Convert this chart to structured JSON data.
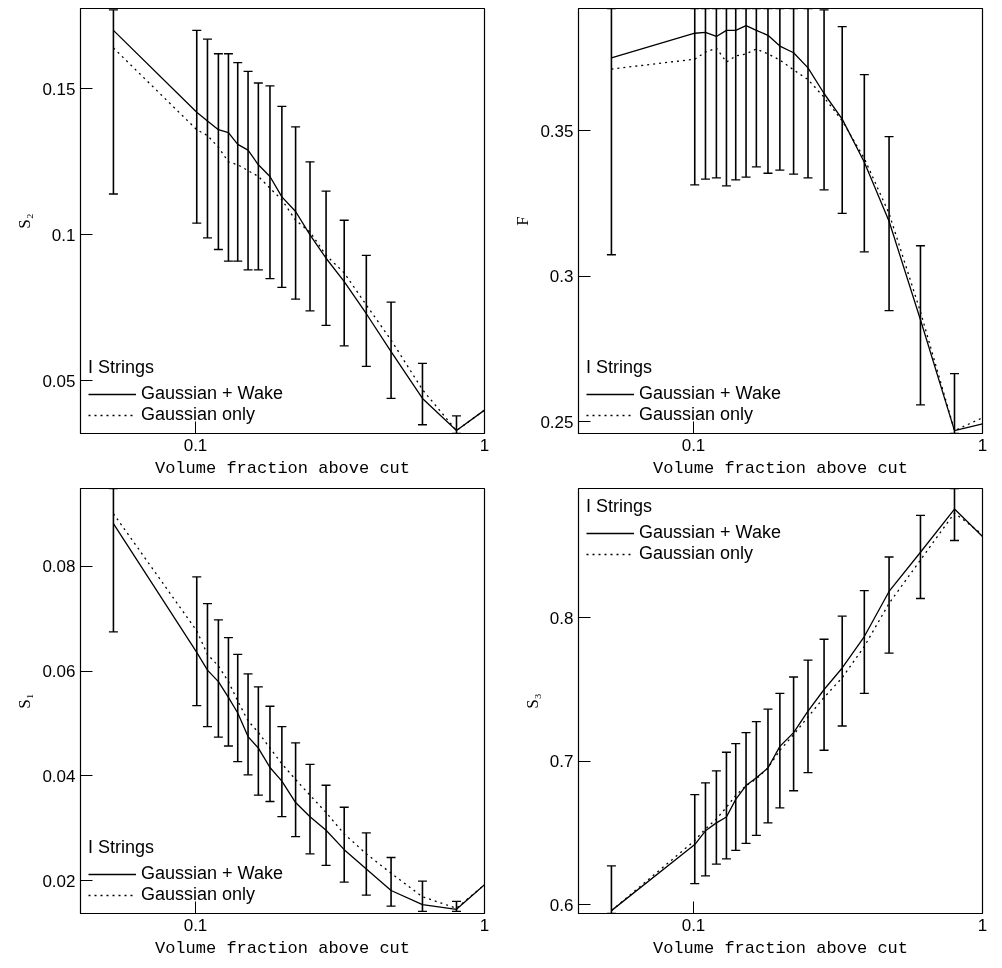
{
  "chart_data": [
    {
      "type": "line",
      "xlabel": "Volume fraction above cut",
      "ylabel": "S₂",
      "legend_title": "I Strings",
      "legend": "bottom left",
      "log": "x",
      "xlim": [
        0.04,
        1
      ],
      "xticks": [
        0.1,
        1
      ],
      "ylim": [
        0.032,
        0.1775
      ],
      "yticks": [
        0.05,
        0.1,
        0.15
      ],
      "x": [
        0.052,
        0.101,
        0.11,
        0.12,
        0.13,
        0.14,
        0.152,
        0.165,
        0.181,
        0.199,
        0.222,
        0.249,
        0.283,
        0.327,
        0.39,
        0.475,
        0.61,
        0.8,
        1.0
      ],
      "series": [
        {
          "name": "Gaussian + Wake",
          "color": "#000000",
          "line_style": "solid",
          "values": [
            0.17,
            0.142,
            0.139,
            0.136,
            0.135,
            0.131,
            0.129,
            0.124,
            0.12,
            0.113,
            0.108,
            0.1,
            0.092,
            0.084,
            0.073,
            0.06,
            0.044,
            0.033,
            0.04
          ],
          "errors": [
            [
              0.114,
              0.177
            ],
            [
              0.104,
              0.17
            ],
            [
              0.099,
              0.167
            ],
            [
              0.095,
              0.162
            ],
            [
              0.091,
              0.162
            ],
            [
              0.091,
              0.159
            ],
            [
              0.088,
              0.156
            ],
            [
              0.088,
              0.152
            ],
            [
              0.085,
              0.151
            ],
            [
              0.082,
              0.144
            ],
            [
              0.078,
              0.137
            ],
            [
              0.074,
              0.125
            ],
            [
              0.069,
              0.115
            ],
            [
              0.062,
              0.105
            ],
            [
              0.055,
              0.093
            ],
            [
              0.044,
              0.077
            ],
            [
              0.035,
              0.056
            ],
            [
              0.032,
              0.038
            ],
            null
          ]
        },
        {
          "name": "Gaussian only",
          "color": "#000000",
          "line_style": "dotted",
          "values": [
            0.164,
            0.136,
            0.134,
            0.13,
            0.125,
            0.124,
            0.122,
            0.12,
            0.116,
            0.112,
            0.105,
            0.101,
            0.093,
            0.087,
            0.076,
            0.064,
            0.047,
            0.033,
            0.04
          ]
        }
      ]
    },
    {
      "type": "line",
      "xlabel": "Volume fraction above cut",
      "ylabel": "F",
      "legend_title": "I Strings",
      "legend": "bottom left",
      "log": "x",
      "xlim": [
        0.04,
        1
      ],
      "xticks": [
        0.1,
        1
      ],
      "ylim": [
        0.246,
        0.392
      ],
      "yticks": [
        0.25,
        0.3,
        0.35
      ],
      "x": [
        0.052,
        0.101,
        0.11,
        0.12,
        0.13,
        0.14,
        0.152,
        0.165,
        0.181,
        0.199,
        0.222,
        0.249,
        0.283,
        0.327,
        0.39,
        0.475,
        0.61,
        0.8,
        1.0
      ],
      "series": [
        {
          "name": "Gaussian + Wake",
          "color": "#000000",
          "line_style": "solid",
          "values": [
            0.375,
            0.3835,
            0.3838,
            0.3824,
            0.3845,
            0.3845,
            0.3861,
            0.3845,
            0.3828,
            0.3791,
            0.3768,
            0.3716,
            0.3628,
            0.354,
            0.3392,
            0.3189,
            0.2851,
            0.247,
            0.2493
          ],
          "errors": [
            [
              0.3074,
              0.392
            ],
            [
              0.3314,
              0.392
            ],
            [
              0.3334,
              0.392
            ],
            [
              0.3338,
              0.392
            ],
            [
              0.3311,
              0.392
            ],
            [
              0.3331,
              0.392
            ],
            [
              0.3341,
              0.392
            ],
            [
              0.3376,
              0.392
            ],
            [
              0.3354,
              0.392
            ],
            [
              0.3365,
              0.392
            ],
            [
              0.3351,
              0.392
            ],
            [
              0.3338,
              0.392
            ],
            [
              0.3297,
              0.3915
            ],
            [
              0.3216,
              0.3858
            ],
            [
              0.3084,
              0.3693
            ],
            [
              0.2882,
              0.348
            ],
            [
              0.2558,
              0.3105
            ],
            [
              0.246,
              0.2666
            ],
            null
          ]
        },
        {
          "name": "Gaussian only",
          "color": "#000000",
          "line_style": "dotted",
          "values": [
            0.3712,
            0.3746,
            0.377,
            0.3784,
            0.3736,
            0.3757,
            0.3764,
            0.3781,
            0.3764,
            0.3743,
            0.3709,
            0.3676,
            0.3615,
            0.3534,
            0.3405,
            0.3216,
            0.2878,
            0.247,
            0.2514
          ]
        }
      ]
    },
    {
      "type": "line",
      "xlabel": "Volume fraction above cut",
      "ylabel": "S₁",
      "legend_title": "I Strings",
      "legend": "bottom left",
      "log": "x",
      "xlim": [
        0.04,
        1
      ],
      "xticks": [
        0.1,
        1
      ],
      "ylim": [
        0.0137,
        0.0949
      ],
      "yticks": [
        0.02,
        0.04,
        0.06,
        0.08
      ],
      "x": [
        0.052,
        0.101,
        0.11,
        0.12,
        0.13,
        0.14,
        0.152,
        0.165,
        0.181,
        0.199,
        0.222,
        0.249,
        0.283,
        0.327,
        0.39,
        0.475,
        0.61,
        0.8,
        1.0
      ],
      "series": [
        {
          "name": "Gaussian + Wake",
          "color": "#000000",
          "line_style": "solid",
          "values": [
            0.0882,
            0.0636,
            0.0602,
            0.058,
            0.055,
            0.052,
            0.0475,
            0.0453,
            0.0416,
            0.039,
            0.0349,
            0.0322,
            0.0296,
            0.0259,
            0.0222,
            0.0181,
            0.0154,
            0.0145,
            0.0192
          ],
          "errors": [
            [
              0.0675,
              0.0949
            ],
            [
              0.0534,
              0.078
            ],
            [
              0.0494,
              0.0729
            ],
            [
              0.0474,
              0.0698
            ],
            [
              0.0457,
              0.0664
            ],
            [
              0.0427,
              0.0632
            ],
            [
              0.0402,
              0.0595
            ],
            [
              0.0363,
              0.057
            ],
            [
              0.0351,
              0.0533
            ],
            [
              0.0322,
              0.0494
            ],
            [
              0.0284,
              0.0463
            ],
            [
              0.0251,
              0.0422
            ],
            [
              0.0229,
              0.0382
            ],
            [
              0.0197,
              0.034
            ],
            [
              0.0172,
              0.0291
            ],
            [
              0.0151,
              0.0244
            ],
            [
              0.0141,
              0.0199
            ],
            [
              0.0141,
              0.016
            ],
            null
          ]
        },
        {
          "name": "Gaussian only",
          "color": "#000000",
          "line_style": "dotted",
          "values": [
            0.0901,
            0.0677,
            0.0632,
            0.061,
            0.058,
            0.0543,
            0.0505,
            0.0483,
            0.0453,
            0.0423,
            0.0393,
            0.0363,
            0.033,
            0.0289,
            0.0251,
            0.0214,
            0.0169,
            0.0147,
            0.0192
          ]
        }
      ]
    },
    {
      "type": "line",
      "xlabel": "Volume fraction above cut",
      "ylabel": "S₃",
      "legend_title": "I Strings",
      "legend": "top left",
      "log": "x",
      "xlim": [
        0.04,
        1
      ],
      "xticks": [
        0.1,
        1
      ],
      "ylim": [
        0.594,
        0.89
      ],
      "yticks": [
        0.6,
        0.7,
        0.8
      ],
      "x": [
        0.052,
        0.101,
        0.11,
        0.12,
        0.13,
        0.14,
        0.152,
        0.165,
        0.181,
        0.199,
        0.222,
        0.249,
        0.283,
        0.327,
        0.39,
        0.475,
        0.61,
        0.8,
        1.0
      ],
      "series": [
        {
          "name": "Gaussian + Wake",
          "color": "#000000",
          "line_style": "solid",
          "values": [
            0.596,
            0.642,
            0.6516,
            0.6571,
            0.6612,
            0.6735,
            0.6831,
            0.6885,
            0.6954,
            0.7104,
            0.72,
            0.735,
            0.75,
            0.765,
            0.7869,
            0.8183,
            0.8456,
            0.8757,
            0.8566
          ],
          "errors": [
            [
              0.594,
              0.6271
            ],
            [
              0.6148,
              0.6768
            ],
            [
              0.6202,
              0.685
            ],
            [
              0.6284,
              0.6934
            ],
            [
              0.632,
              0.7063
            ],
            [
              0.638,
              0.7123
            ],
            [
              0.6429,
              0.72
            ],
            [
              0.6484,
              0.7276
            ],
            [
              0.6571,
              0.7363
            ],
            [
              0.6675,
              0.7473
            ],
            [
              0.6795,
              0.7587
            ],
            [
              0.6921,
              0.7705
            ],
            [
              0.7077,
              0.785
            ],
            [
              0.7246,
              0.8011
            ],
            [
              0.7473,
              0.8189
            ],
            [
              0.7754,
              0.8423
            ],
            [
              0.8134,
              0.8713
            ],
            [
              0.8538,
              0.89
            ],
            null
          ]
        },
        {
          "name": "Gaussian only",
          "color": "#000000",
          "line_style": "dotted",
          "values": [
            0.596,
            0.6448,
            0.653,
            0.6598,
            0.668,
            0.6762,
            0.6831,
            0.6877,
            0.6954,
            0.7077,
            0.7186,
            0.7309,
            0.7445,
            0.7582,
            0.78,
            0.81,
            0.8402,
            0.873,
            0.8579
          ]
        }
      ]
    }
  ]
}
